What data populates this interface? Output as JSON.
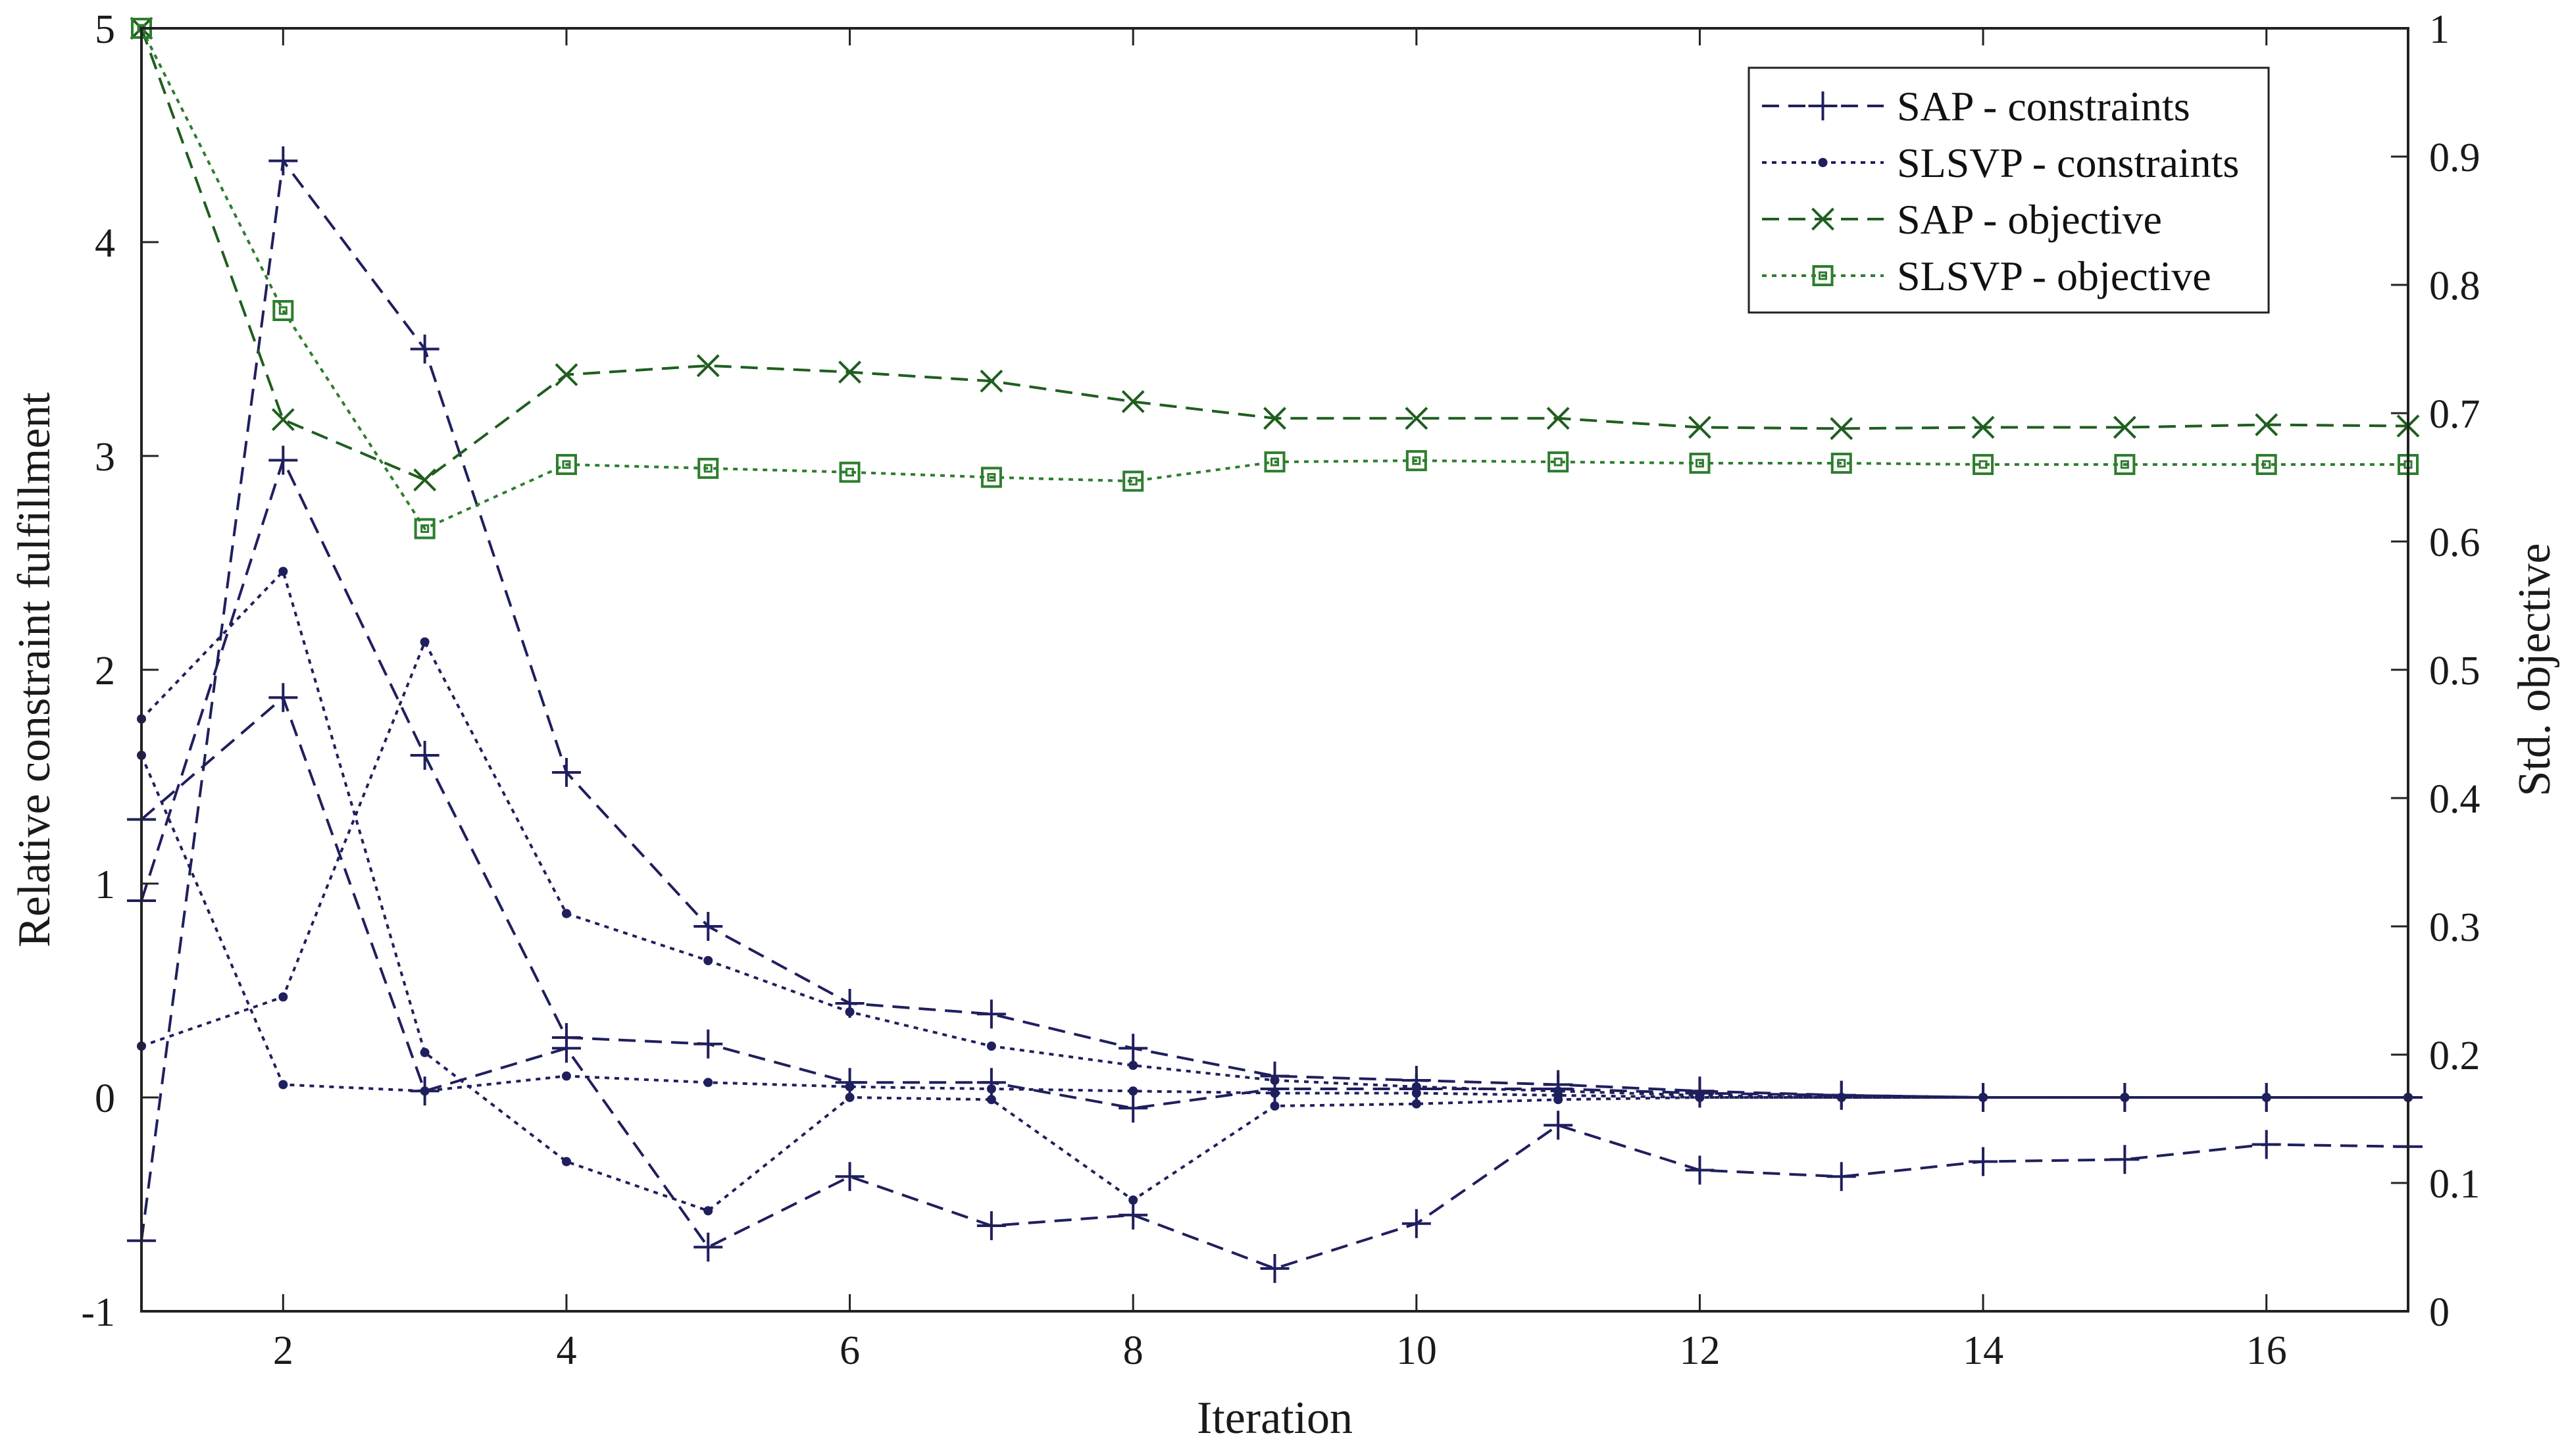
{
  "chart_data": {
    "type": "line",
    "xlabel": "Iteration",
    "ylabel_left": "Relative constraint fulfillment",
    "ylabel_right": "Std. objective",
    "xlim": [
      1,
      17
    ],
    "ylim_left": [
      -1,
      5
    ],
    "ylim_right": [
      0,
      1
    ],
    "x_ticks": [
      2,
      4,
      6,
      8,
      10,
      12,
      14,
      16
    ],
    "y_left_ticks": [
      -1,
      0,
      1,
      2,
      3,
      4,
      5
    ],
    "y_right_ticks": [
      0,
      0.1,
      0.2,
      0.3,
      0.4,
      0.5,
      0.6,
      0.7,
      0.8,
      0.9,
      1
    ],
    "grid": false,
    "legend_position": "top-right",
    "legend": [
      {
        "label": "SAP - constraints",
        "color": "#1f1f5e",
        "dash": "dashed",
        "marker": "plus"
      },
      {
        "label": "SLSVP - constraints",
        "color": "#1f1f5e",
        "dash": "dotted",
        "marker": "dot"
      },
      {
        "label": "SAP - objective",
        "color": "#1f5e1f",
        "dash": "dashed",
        "marker": "cross"
      },
      {
        "label": "SLSVP - objective",
        "color": "#2e7d2e",
        "dash": "dotted",
        "marker": "square"
      }
    ],
    "x": [
      1,
      2,
      3,
      4,
      5,
      6,
      7,
      8,
      9,
      10,
      11,
      12,
      13,
      14,
      15,
      16,
      17
    ],
    "series": [
      {
        "group": "SAP - constraints",
        "axis": "left",
        "values": [
          -0.67,
          4.38,
          3.5,
          1.52,
          0.8,
          0.44,
          0.39,
          0.23,
          0.1,
          0.08,
          0.06,
          0.03,
          0.01,
          0.0,
          0.0,
          0.0,
          0.0
        ]
      },
      {
        "group": "SAP - constraints",
        "axis": "left",
        "values": [
          0.92,
          2.98,
          1.6,
          0.28,
          0.25,
          0.07,
          0.07,
          -0.05,
          0.04,
          0.04,
          0.04,
          0.02,
          0.01,
          0.0,
          0.0,
          0.0,
          0.0
        ]
      },
      {
        "group": "SAP - constraints",
        "axis": "left",
        "values": [
          1.3,
          1.87,
          0.03,
          0.23,
          -0.7,
          -0.37,
          -0.6,
          -0.55,
          -0.8,
          -0.59,
          -0.13,
          -0.34,
          -0.37,
          -0.3,
          -0.29,
          -0.22,
          -0.23
        ]
      },
      {
        "group": "SLSVP - constraints",
        "axis": "left",
        "values": [
          1.6,
          0.06,
          0.03,
          0.1,
          0.07,
          0.05,
          0.04,
          0.03,
          0.02,
          0.02,
          0.01,
          0.0,
          0.0,
          0.0,
          0.0,
          0.0,
          0.0
        ]
      },
      {
        "group": "SLSVP - constraints",
        "axis": "left",
        "values": [
          1.77,
          2.46,
          0.21,
          -0.3,
          -0.53,
          0.0,
          -0.01,
          -0.48,
          -0.04,
          -0.03,
          -0.01,
          0.0,
          0.0,
          0.0,
          0.0,
          0.0,
          0.0
        ]
      },
      {
        "group": "SLSVP - constraints",
        "axis": "left",
        "values": [
          0.24,
          0.47,
          2.13,
          0.86,
          0.64,
          0.4,
          0.24,
          0.15,
          0.08,
          0.05,
          0.03,
          0.01,
          0.0,
          0.0,
          0.0,
          0.0,
          0.0
        ]
      },
      {
        "group": "SAP - objective",
        "axis": "right",
        "values": [
          1.0,
          0.695,
          0.648,
          0.73,
          0.737,
          0.732,
          0.725,
          0.709,
          0.696,
          0.696,
          0.696,
          0.689,
          0.688,
          0.689,
          0.689,
          0.691,
          0.69
        ]
      },
      {
        "group": "SLSVP - objective",
        "axis": "right",
        "values": [
          1.0,
          0.78,
          0.61,
          0.66,
          0.657,
          0.654,
          0.65,
          0.647,
          0.662,
          0.663,
          0.662,
          0.661,
          0.661,
          0.66,
          0.66,
          0.66,
          0.66
        ]
      }
    ]
  }
}
